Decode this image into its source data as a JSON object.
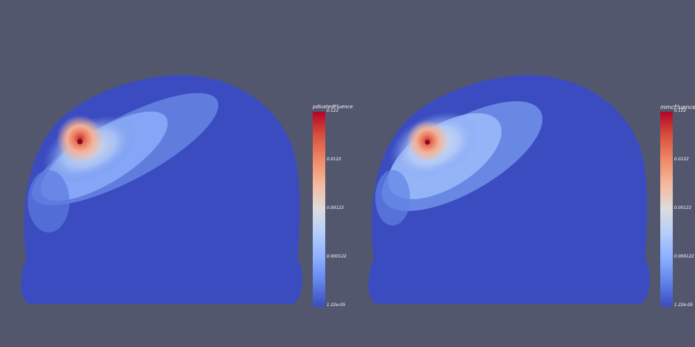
{
  "views": [
    {
      "field_name": "pdiustedFluence",
      "ticks": [
        "0.122",
        "0.0122",
        "0.00122",
        "0.000122",
        "1.22e-05"
      ]
    },
    {
      "field_name": "mmcFluence",
      "ticks": [
        "0.122",
        "0.0122",
        "0.00122",
        "0.000122",
        "1.22e-05"
      ]
    }
  ],
  "colors": {
    "background": "#52576e",
    "min_color": "#3b4cc0",
    "max_color": "#b40426"
  }
}
